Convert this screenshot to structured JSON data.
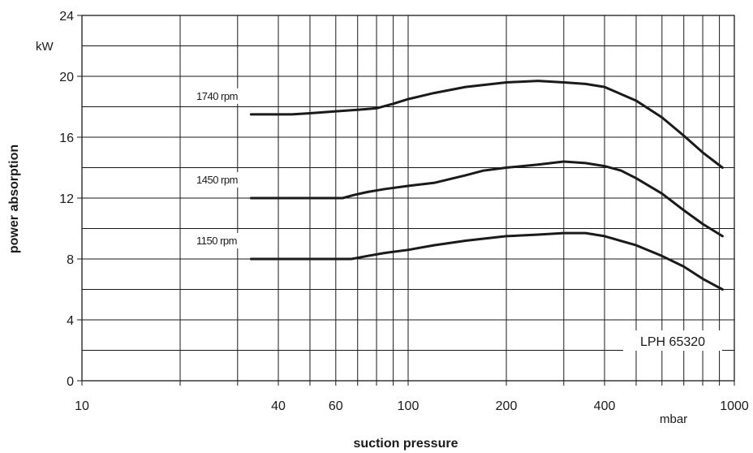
{
  "chart_data": {
    "type": "line",
    "title": "",
    "xlabel": "suction pressure",
    "ylabel": "power absorption",
    "x_unit": "mbar",
    "y_unit": "kW",
    "x_scale": "log",
    "xlim": [
      10,
      1000
    ],
    "ylim": [
      0,
      24
    ],
    "x_ticks": [
      10,
      40,
      60,
      100,
      200,
      400,
      1000
    ],
    "y_ticks": [
      0,
      4,
      8,
      12,
      16,
      20,
      24
    ],
    "grid": true,
    "model": "LPH 65320",
    "series": [
      {
        "name": "1740 rpm",
        "points": [
          [
            33,
            17.5
          ],
          [
            44,
            17.5
          ],
          [
            52,
            17.6
          ],
          [
            60,
            17.7
          ],
          [
            70,
            17.8
          ],
          [
            80,
            17.9
          ],
          [
            90,
            18.2
          ],
          [
            100,
            18.5
          ],
          [
            120,
            18.9
          ],
          [
            150,
            19.3
          ],
          [
            200,
            19.6
          ],
          [
            250,
            19.7
          ],
          [
            300,
            19.6
          ],
          [
            350,
            19.5
          ],
          [
            400,
            19.3
          ],
          [
            500,
            18.4
          ],
          [
            600,
            17.3
          ],
          [
            700,
            16.1
          ],
          [
            800,
            15.0
          ],
          [
            920,
            14.0
          ]
        ]
      },
      {
        "name": "1450 rpm",
        "points": [
          [
            33,
            12.0
          ],
          [
            50,
            12.0
          ],
          [
            63,
            12.0
          ],
          [
            68,
            12.2
          ],
          [
            75,
            12.4
          ],
          [
            85,
            12.6
          ],
          [
            100,
            12.8
          ],
          [
            120,
            13.0
          ],
          [
            150,
            13.5
          ],
          [
            170,
            13.8
          ],
          [
            200,
            14.0
          ],
          [
            250,
            14.2
          ],
          [
            300,
            14.4
          ],
          [
            350,
            14.3
          ],
          [
            400,
            14.1
          ],
          [
            450,
            13.8
          ],
          [
            500,
            13.3
          ],
          [
            600,
            12.3
          ],
          [
            700,
            11.2
          ],
          [
            800,
            10.3
          ],
          [
            920,
            9.5
          ]
        ]
      },
      {
        "name": "1150 rpm",
        "points": [
          [
            33,
            8.0
          ],
          [
            50,
            8.0
          ],
          [
            67,
            8.0
          ],
          [
            75,
            8.2
          ],
          [
            85,
            8.4
          ],
          [
            100,
            8.6
          ],
          [
            120,
            8.9
          ],
          [
            150,
            9.2
          ],
          [
            200,
            9.5
          ],
          [
            250,
            9.6
          ],
          [
            300,
            9.7
          ],
          [
            350,
            9.7
          ],
          [
            400,
            9.5
          ],
          [
            500,
            8.9
          ],
          [
            600,
            8.2
          ],
          [
            700,
            7.5
          ],
          [
            800,
            6.7
          ],
          [
            920,
            6.0
          ]
        ]
      }
    ]
  }
}
